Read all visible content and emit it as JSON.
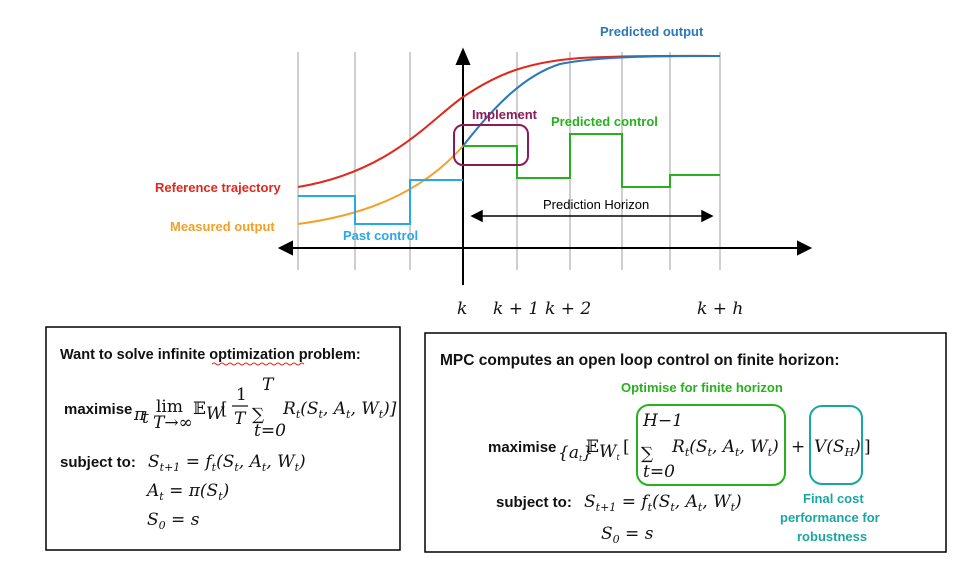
{
  "labels": {
    "predicted_output": "Predicted output",
    "implement": "Implement",
    "predicted_control": "Predicted control",
    "reference_trajectory": "Reference trajectory",
    "measured_output": "Measured output",
    "prediction_horizon": "Prediction Horizon",
    "past_control": "Past control"
  },
  "ticks": {
    "k": "k",
    "k1": "k + 1",
    "k2": "k + 2",
    "kh": "k + h"
  },
  "left_box": {
    "title": "Want to solve infinite optimization problem:",
    "maximise": "maximise",
    "sub_pi": "π",
    "sub_t": "t",
    "lim": "lim",
    "lim_sub": "T→∞",
    "expect": "𝔼",
    "expect_sub": "W",
    "frac_num": "1",
    "frac_den": "T",
    "sum_top": "T",
    "sum_bottom": "t=0",
    "body": "R",
    "args": "(S",
    "subject_to": "subject to:",
    "c1_lhs": "S",
    "c1_lhs_sub": "t+1",
    "c1_rhs": "= f",
    "c2": "A",
    "c2_rhs": "= π(S",
    "c3": "S",
    "c3_sub": "0",
    "c3_rhs": "= s"
  },
  "right_box": {
    "title": "MPC computes an open loop control on finite horizon:",
    "optimise_label": "Optimise for finite horizon",
    "maximise": "maximise",
    "sub_a": "{a",
    "sum_top": "H−1",
    "sum_bottom": "t=0",
    "final_term": "V(S",
    "final_sub": "H",
    "subject_to": "subject to:",
    "c3": "S",
    "c3_sub": "0",
    "c3_rhs": "= s",
    "final_cost_line1": "Final cost",
    "final_cost_line2": "performance for",
    "final_cost_line3": "robustness"
  },
  "colors": {
    "reference": "#e0281e",
    "measured": "#f3a02a",
    "predicted_output": "#2a78b8",
    "past_control": "#29a8e6",
    "predicted_control": "#27b11e",
    "implement": "#8a1b5a",
    "teal": "#1aa6a0",
    "grid": "#cfcfcf"
  }
}
